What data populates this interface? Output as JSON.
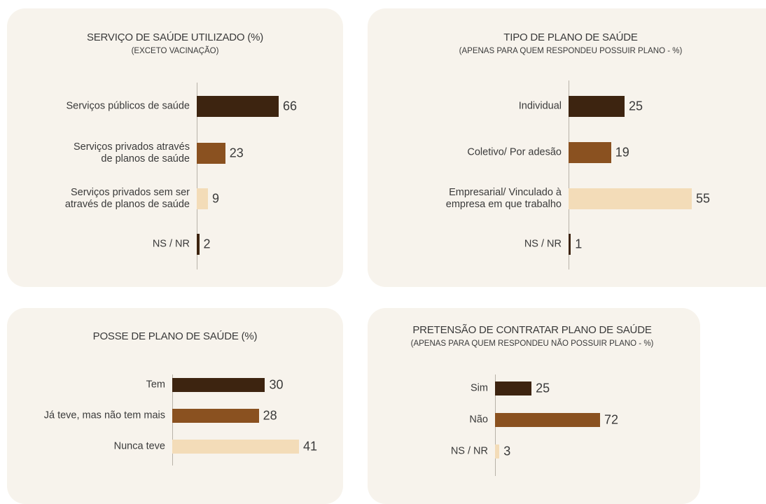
{
  "chart_data": [
    {
      "type": "bar",
      "title": "SERVIÇO DE SAÚDE UTILIZADO (%)",
      "subtitle": "(EXCETO VACINAÇÃO)",
      "categories": [
        "Serviços públicos de saúde",
        "Serviços privados através\nde planos de saúde",
        "Serviços privados sem ser\natravés de planos de saúde",
        "NS / NR"
      ],
      "values": [
        66,
        23,
        9,
        2
      ],
      "colors": [
        "#3d2410",
        "#8a5120",
        "#f3dcb8",
        "#3d2410"
      ]
    },
    {
      "type": "bar",
      "title": "TIPO DE PLANO DE SAÚDE",
      "subtitle": "(APENAS PARA QUEM RESPONDEU POSSUIR PLANO - %)",
      "categories": [
        "Individual",
        "Coletivo/ Por adesão",
        "Empresarial/ Vinculado à\nempresa em que trabalho",
        "NS / NR"
      ],
      "values": [
        25,
        19,
        55,
        1
      ],
      "colors": [
        "#3d2410",
        "#8a5120",
        "#f3dcb8",
        "#3d2410"
      ]
    },
    {
      "type": "bar",
      "title": "POSSE DE PLANO DE SAÚDE (%)",
      "categories": [
        "Tem",
        "Já teve, mas não tem mais",
        "Nunca teve"
      ],
      "values": [
        30,
        28,
        41
      ],
      "colors": [
        "#3d2410",
        "#8a5120",
        "#f3dcb8"
      ]
    },
    {
      "type": "bar",
      "title": "PRETENSÃO DE CONTRATAR PLANO DE SAÚDE",
      "subtitle": "(APENAS PARA QUEM RESPONDEU NÃO POSSUIR PLANO - %)",
      "categories": [
        "Sim",
        "Não",
        "NS / NR"
      ],
      "values": [
        25,
        72,
        3
      ],
      "colors": [
        "#3d2410",
        "#8a5120",
        "#f3dcb8"
      ]
    }
  ]
}
